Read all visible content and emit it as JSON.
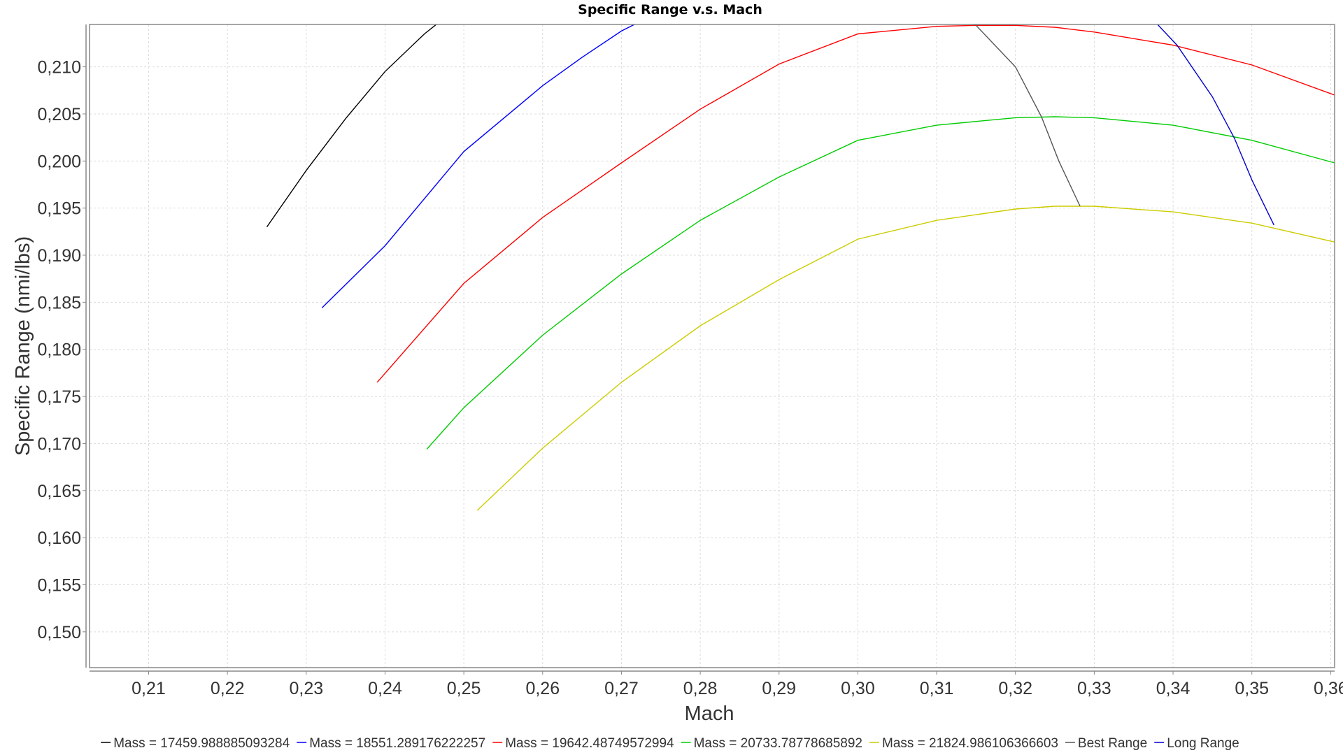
{
  "chart_data": {
    "type": "line",
    "title": "Specific Range v.s. Mach",
    "xlabel": "Mach",
    "ylabel": "Specific Range (nmi/lbs)",
    "xlim": [
      0.2025,
      0.3605
    ],
    "ylim": [
      0.1462,
      0.2145
    ],
    "x_ticks": [
      0.21,
      0.22,
      0.23,
      0.24,
      0.25,
      0.26,
      0.27,
      0.28,
      0.29,
      0.3,
      0.31,
      0.32,
      0.33,
      0.34,
      0.35,
      0.36
    ],
    "x_tick_labels": [
      "0,21",
      "0,22",
      "0,23",
      "0,24",
      "0,25",
      "0,26",
      "0,27",
      "0,28",
      "0,29",
      "0,30",
      "0,31",
      "0,32",
      "0,33",
      "0,34",
      "0,35",
      "0,36"
    ],
    "y_ticks": [
      0.15,
      0.155,
      0.16,
      0.165,
      0.17,
      0.175,
      0.18,
      0.185,
      0.19,
      0.195,
      0.2,
      0.205,
      0.21
    ],
    "y_tick_labels": [
      "0,150",
      "0,155",
      "0,160",
      "0,165",
      "0,170",
      "0,175",
      "0,180",
      "0,185",
      "0,190",
      "0,195",
      "0,200",
      "0,205",
      "0,210"
    ],
    "grid": true,
    "legend_position": "bottom",
    "series": [
      {
        "name": "Mass = 17459.988885093284",
        "color": "#000000",
        "x": [
          0.225,
          0.23,
          0.235,
          0.24,
          0.245,
          0.248,
          0.251
        ],
        "y": [
          0.193,
          0.199,
          0.2045,
          0.2095,
          0.2135,
          0.2155,
          0.2172
        ]
      },
      {
        "name": "Mass = 18551.289176222257",
        "color": "#0000ff",
        "x": [
          0.232,
          0.24,
          0.25,
          0.26,
          0.265,
          0.27,
          0.274
        ],
        "y": [
          0.1844,
          0.191,
          0.201,
          0.208,
          0.211,
          0.2138,
          0.2155
        ]
      },
      {
        "name": "Mass = 19642.48749572994",
        "color": "#ff0000",
        "x": [
          0.239,
          0.25,
          0.26,
          0.27,
          0.28,
          0.29,
          0.3,
          0.31,
          0.315,
          0.32,
          0.325,
          0.33,
          0.34,
          0.35,
          0.3605
        ],
        "y": [
          0.1765,
          0.187,
          0.194,
          0.1998,
          0.2055,
          0.2103,
          0.2135,
          0.2143,
          0.2144,
          0.2144,
          0.2142,
          0.2137,
          0.2123,
          0.2102,
          0.207
        ]
      },
      {
        "name": "Mass = 20733.78778685892",
        "color": "#00cc00",
        "x": [
          0.2453,
          0.25,
          0.26,
          0.27,
          0.28,
          0.29,
          0.3,
          0.31,
          0.32,
          0.325,
          0.33,
          0.34,
          0.35,
          0.3605
        ],
        "y": [
          0.1694,
          0.1738,
          0.1815,
          0.188,
          0.1937,
          0.1983,
          0.2022,
          0.2038,
          0.2046,
          0.2047,
          0.2046,
          0.2038,
          0.2022,
          0.1998
        ]
      },
      {
        "name": "Mass = 21824.986106366603",
        "color": "#cccc00",
        "x": [
          0.2517,
          0.26,
          0.27,
          0.28,
          0.29,
          0.3,
          0.31,
          0.32,
          0.325,
          0.33,
          0.34,
          0.35,
          0.3605
        ],
        "y": [
          0.1629,
          0.1695,
          0.1765,
          0.1825,
          0.1874,
          0.1917,
          0.1937,
          0.1949,
          0.1952,
          0.1952,
          0.1946,
          0.1934,
          0.1914
        ]
      },
      {
        "name": "Best Range",
        "color": "#555555",
        "x": [
          0.3095,
          0.315,
          0.32,
          0.3233,
          0.3255,
          0.3282
        ],
        "y": [
          0.2172,
          0.2144,
          0.21,
          0.2047,
          0.2,
          0.1952
        ]
      },
      {
        "name": "Long Range",
        "color": "#0000cc",
        "x": [
          0.335,
          0.3405,
          0.345,
          0.3478,
          0.35,
          0.3528
        ],
        "y": [
          0.2172,
          0.2123,
          0.2068,
          0.2024,
          0.198,
          0.1932
        ]
      }
    ]
  }
}
